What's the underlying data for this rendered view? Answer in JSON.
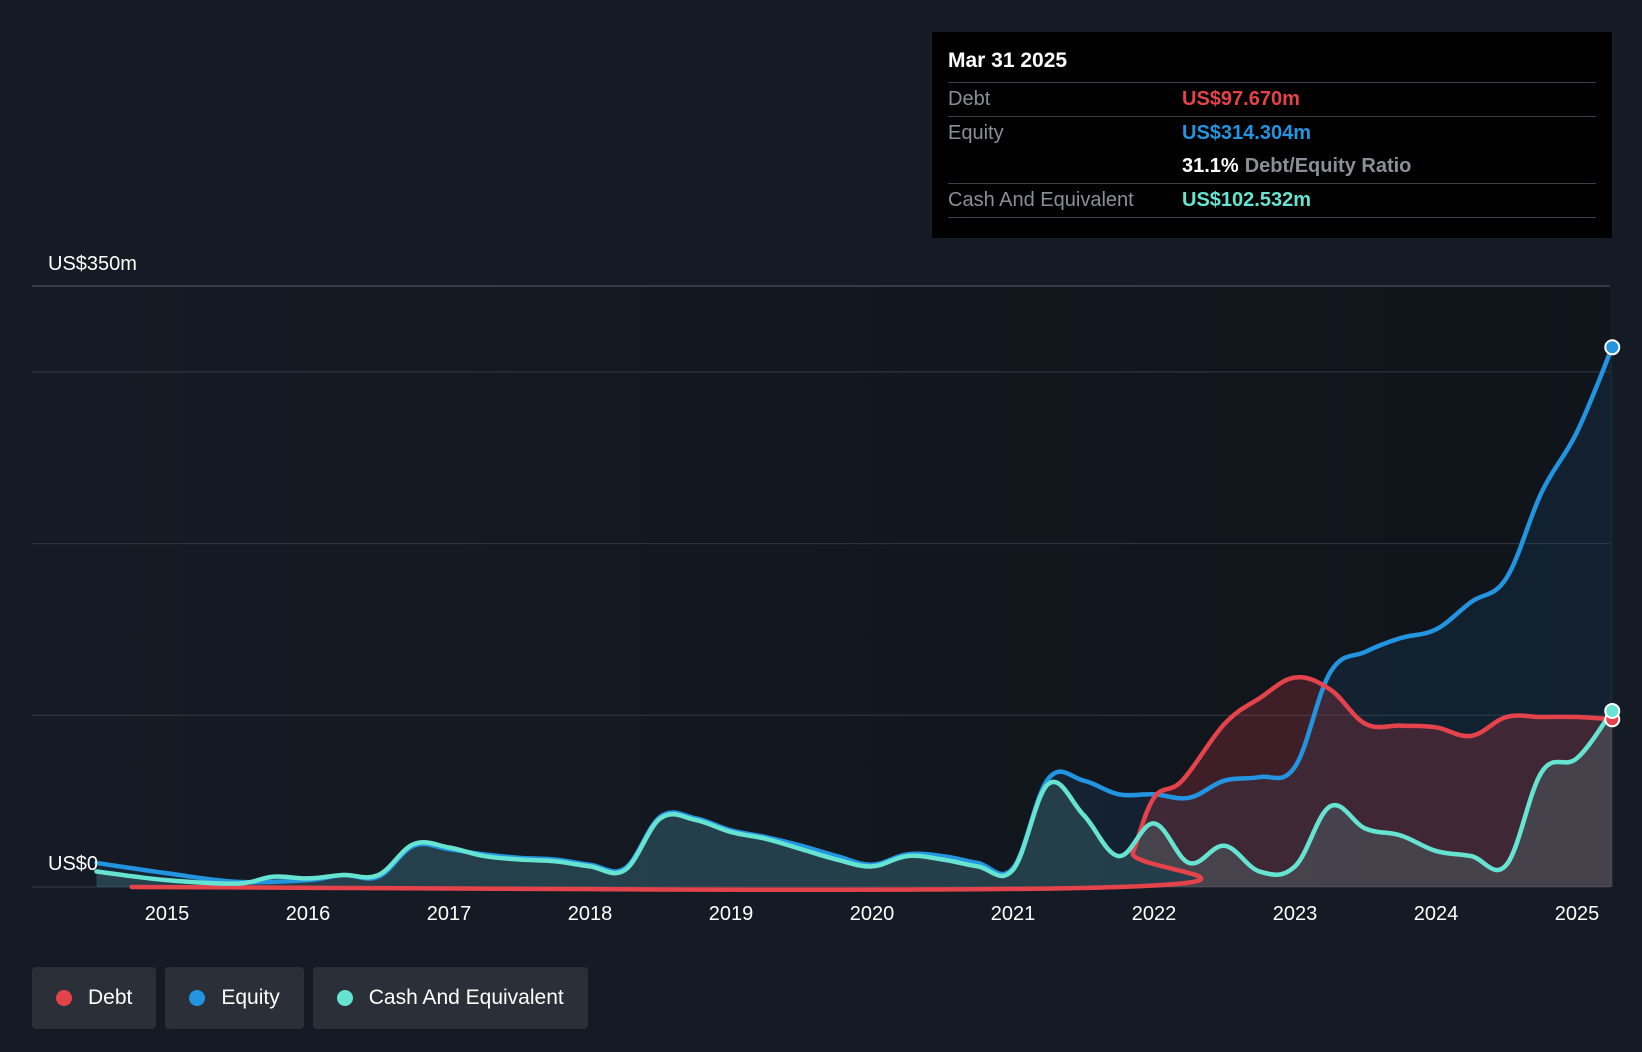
{
  "chart_data": {
    "type": "area",
    "title": "",
    "xlabel": "",
    "ylabel": "",
    "ylim": [
      0,
      350
    ],
    "y_top_label": "US$350m",
    "y_bottom_label": "US$0",
    "x_ticks": [
      "2015",
      "2016",
      "2017",
      "2018",
      "2019",
      "2020",
      "2021",
      "2022",
      "2023",
      "2024",
      "2025"
    ],
    "grid": true,
    "legend_position": "bottom-left",
    "series": [
      {
        "name": "Debt",
        "color": "#e5434b",
        "x": [
          2014.75,
          2021.75,
          2021.85,
          2022.0,
          2022.2,
          2022.5,
          2022.75,
          2023.0,
          2023.25,
          2023.5,
          2023.75,
          2024.0,
          2024.25,
          2024.5,
          2024.75,
          2025.0,
          2025.25
        ],
        "y": [
          0,
          0,
          20,
          52,
          62,
          95,
          110,
          122,
          115,
          95,
          94,
          93,
          88,
          99,
          99,
          99,
          97.67
        ]
      },
      {
        "name": "Equity",
        "color": "#2394df",
        "x": [
          2014.5,
          2015.0,
          2015.5,
          2016.0,
          2016.25,
          2016.5,
          2016.75,
          2017.0,
          2017.25,
          2017.5,
          2017.75,
          2018.0,
          2018.25,
          2018.5,
          2018.75,
          2019.0,
          2019.25,
          2019.5,
          2019.75,
          2020.0,
          2020.25,
          2020.5,
          2020.75,
          2021.0,
          2021.25,
          2021.5,
          2021.75,
          2022.0,
          2022.25,
          2022.5,
          2022.75,
          2023.0,
          2023.25,
          2023.5,
          2023.75,
          2024.0,
          2024.25,
          2024.5,
          2024.75,
          2025.0,
          2025.25
        ],
        "y": [
          14,
          8,
          3,
          4,
          7,
          6,
          24,
          22,
          19,
          17,
          16,
          13,
          11,
          41,
          40,
          33,
          29,
          24,
          18,
          13,
          19,
          18,
          14,
          11,
          63,
          62,
          54,
          54,
          52,
          62,
          64,
          70,
          125,
          137,
          145,
          150,
          166,
          180,
          230,
          265,
          314.3
        ]
      },
      {
        "name": "Cash And Equivalent",
        "color": "#67e3d2",
        "x": [
          2014.5,
          2015.0,
          2015.5,
          2015.75,
          2016.0,
          2016.25,
          2016.5,
          2016.75,
          2017.0,
          2017.25,
          2017.5,
          2017.75,
          2018.0,
          2018.25,
          2018.5,
          2018.75,
          2019.0,
          2019.25,
          2019.5,
          2019.75,
          2020.0,
          2020.25,
          2020.5,
          2020.75,
          2021.0,
          2021.25,
          2021.5,
          2021.75,
          2022.0,
          2022.25,
          2022.5,
          2022.75,
          2023.0,
          2023.25,
          2023.5,
          2023.75,
          2024.0,
          2024.25,
          2024.5,
          2024.75,
          2025.0,
          2025.25
        ],
        "y": [
          9,
          4,
          2,
          6,
          5,
          7,
          7,
          25,
          23,
          18,
          16,
          15,
          12,
          10,
          40,
          39,
          32,
          28,
          22,
          16,
          12,
          18,
          16,
          12,
          10,
          60,
          42,
          18,
          37,
          14,
          24,
          9,
          12,
          47,
          34,
          30,
          21,
          18,
          13,
          67,
          75,
          102.53
        ]
      }
    ]
  },
  "tooltip": {
    "date": "Mar 31 2025",
    "debt_label": "Debt",
    "debt_value": "US$97.670m",
    "equity_label": "Equity",
    "equity_value": "US$314.304m",
    "ratio_value": "31.1%",
    "ratio_label": "Debt/Equity Ratio",
    "cash_label": "Cash And Equivalent",
    "cash_value": "US$102.532m"
  },
  "legend": {
    "debt": "Debt",
    "equity": "Equity",
    "cash": "Cash And Equivalent"
  },
  "colors": {
    "debt": "#e5434b",
    "equity": "#2394df",
    "cash": "#67e3d2",
    "background": "#151b24"
  }
}
